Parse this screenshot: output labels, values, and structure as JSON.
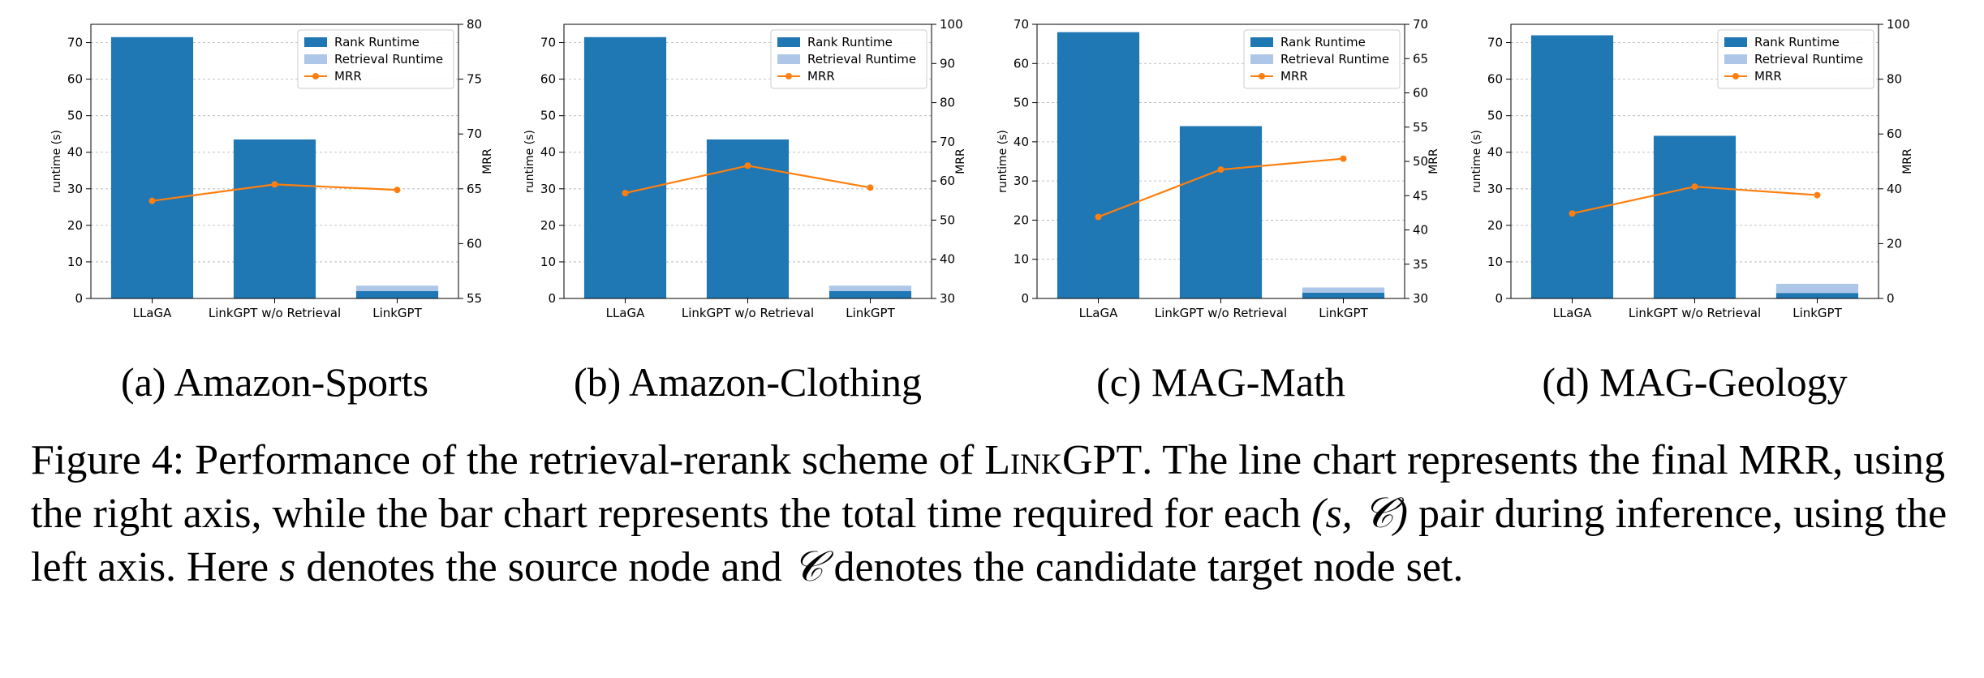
{
  "chart_data": [
    {
      "type": "bar+line",
      "caption": "(a) Amazon-Sports",
      "categories": [
        "LLaGA",
        "LinkGPT w/o Retrieval",
        "LinkGPT"
      ],
      "rank_runtime": [
        71.5,
        43.5,
        2.0
      ],
      "retrieval_runtime": [
        0,
        0,
        1.5
      ],
      "mrr": [
        63.9,
        65.4,
        64.9
      ],
      "ylabel_left": "runtime (s)",
      "ylabel_right": "MRR",
      "ylim_left": [
        0,
        75
      ],
      "ylim_right": [
        55,
        80
      ],
      "yticks_left": [
        0,
        10,
        20,
        30,
        40,
        50,
        60,
        70
      ],
      "yticks_right": [
        55,
        60,
        65,
        70,
        75,
        80
      ]
    },
    {
      "type": "bar+line",
      "caption": "(b) Amazon-Clothing",
      "categories": [
        "LLaGA",
        "LinkGPT w/o Retrieval",
        "LinkGPT"
      ],
      "rank_runtime": [
        71.5,
        43.5,
        2.0
      ],
      "retrieval_runtime": [
        0,
        0,
        1.5
      ],
      "mrr": [
        56.9,
        63.9,
        58.3
      ],
      "ylabel_left": "runtime (s)",
      "ylabel_right": "MRR",
      "ylim_left": [
        0,
        75
      ],
      "ylim_right": [
        30,
        100
      ],
      "yticks_left": [
        0,
        10,
        20,
        30,
        40,
        50,
        60,
        70
      ],
      "yticks_right": [
        30,
        40,
        50,
        60,
        70,
        80,
        90,
        100
      ]
    },
    {
      "type": "bar+line",
      "caption": "(c) MAG-Math",
      "categories": [
        "LLaGA",
        "LinkGPT w/o Retrieval",
        "LinkGPT"
      ],
      "rank_runtime": [
        68.0,
        44.0,
        1.5
      ],
      "retrieval_runtime": [
        0,
        0,
        1.3
      ],
      "mrr": [
        41.9,
        48.8,
        50.4
      ],
      "ylabel_left": "runtime (s)",
      "ylabel_right": "MRR",
      "ylim_left": [
        0,
        70
      ],
      "ylim_right": [
        30,
        70
      ],
      "yticks_left": [
        0,
        10,
        20,
        30,
        40,
        50,
        60,
        70
      ],
      "yticks_right": [
        30,
        35,
        40,
        45,
        50,
        55,
        60,
        65,
        70
      ]
    },
    {
      "type": "bar+line",
      "caption": "(d) MAG-Geology",
      "categories": [
        "LLaGA",
        "LinkGPT w/o Retrieval",
        "LinkGPT"
      ],
      "rank_runtime": [
        72.0,
        44.5,
        1.5
      ],
      "retrieval_runtime": [
        0,
        0,
        2.5
      ],
      "mrr": [
        31.0,
        40.8,
        37.7
      ],
      "ylabel_left": "runtime (s)",
      "ylabel_right": "MRR",
      "ylim_left": [
        0,
        75
      ],
      "ylim_right": [
        0,
        100
      ],
      "yticks_left": [
        0,
        10,
        20,
        30,
        40,
        50,
        60,
        70
      ],
      "yticks_right": [
        0,
        20,
        40,
        60,
        80,
        100
      ]
    }
  ],
  "legend": {
    "rank_runtime": "Rank Runtime",
    "retrieval_runtime": "Retrieval Runtime",
    "mrr": "MRR"
  },
  "colors": {
    "rank": "#1f77b4",
    "retrieval": "#aec7e8",
    "mrr": "#ff7f0e"
  },
  "caption": {
    "label": "Figure 4:",
    "t1": " Performance of the retrieval-rerank scheme of ",
    "model": "LinkGPT",
    "t2": ". The line chart represents the final MRR, using the right axis, while the bar chart represents the total time required for each ",
    "pair": "(s, 𝒞)",
    "t3": " pair during inference, using the left axis. Here ",
    "s": "s",
    "t4": " denotes the source node and ",
    "c": "𝒞",
    "t5": " denotes the candidate target node set."
  }
}
